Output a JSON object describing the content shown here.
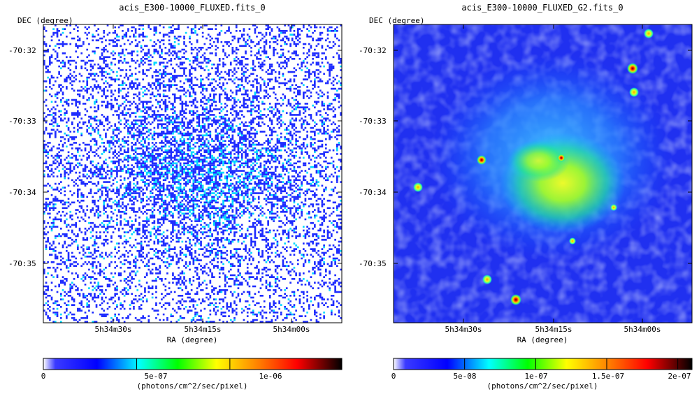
{
  "chart_data": [
    {
      "type": "heatmap",
      "title": "acis_E300-10000_FLUXED.fits_0",
      "ylabel": "DEC (degree)",
      "xlabel": "RA (degree)",
      "y_ticks": [
        "-70:32",
        "-70:33",
        "-70:34",
        "-70:35"
      ],
      "x_ticks": [
        "5h34m30s",
        "5h34m15s",
        "5h34m00s"
      ],
      "colorbar": {
        "label": "(photons/cm^2/sec/pixel)",
        "ticks": [
          "0",
          "5e-07",
          "1e-06"
        ],
        "tick_values": [
          0,
          5e-07,
          1e-06
        ],
        "range": [
          0,
          1.6e-06
        ]
      },
      "colormap": [
        "#ffffff",
        "#0000ff",
        "#00ffff",
        "#00ff00",
        "#ffff00",
        "#ff8000",
        "#ff0000",
        "#000000"
      ],
      "description": "raw binned counts, sparse blue pixels with diffuse remnant emission"
    },
    {
      "type": "heatmap",
      "title": "acis_E300-10000_FLUXED_G2.fits_0",
      "ylabel": "DEC (degree)",
      "xlabel": "RA (degree)",
      "y_ticks": [
        "-70:32",
        "-70:33",
        "-70:34",
        "-70:35"
      ],
      "x_ticks": [
        "5h34m30s",
        "5h34m15s",
        "5h34m00s"
      ],
      "colorbar": {
        "label": "(photons/cm^2/sec/pixel)",
        "ticks": [
          "0",
          "5e-08",
          "1e-07",
          "1.5e-07",
          "2e-07"
        ],
        "tick_values": [
          0,
          5e-08,
          1e-07,
          1.5e-07,
          2e-07
        ],
        "range": [
          0,
          2.1e-07
        ]
      },
      "colormap": [
        "#ffffff",
        "#0000ff",
        "#00ffff",
        "#00ff00",
        "#ffff00",
        "#ff8000",
        "#ff0000",
        "#000000"
      ],
      "description": "gaussian-smoothed image, diffuse remnant with point sources"
    }
  ]
}
